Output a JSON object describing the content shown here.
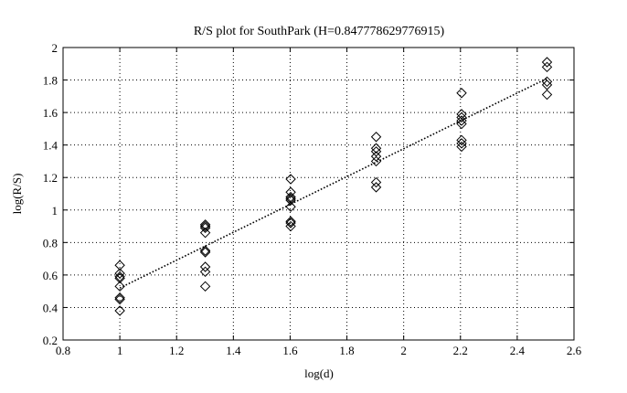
{
  "chart_data": {
    "type": "scatter",
    "title": "R/S plot for SouthPark (H=0.847778629776915)",
    "xlabel": "log(d)",
    "ylabel": "log(R/S)",
    "xlim": [
      0.8,
      2.6
    ],
    "ylim": [
      0.2,
      2.0
    ],
    "xticks": [
      0.8,
      1.0,
      1.2,
      1.4,
      1.6,
      1.8,
      2.0,
      2.2,
      2.4,
      2.6
    ],
    "xtick_labels": [
      "0.8",
      "1",
      "1.2",
      "1.4",
      "1.6",
      "1.8",
      "2",
      "2.2",
      "2.4",
      "2.6"
    ],
    "yticks": [
      0.2,
      0.4,
      0.6,
      0.8,
      1.0,
      1.2,
      1.4,
      1.6,
      1.8,
      2.0
    ],
    "ytick_labels": [
      "0.2",
      "0.4",
      "0.6",
      "0.8",
      "1",
      "1.2",
      "1.4",
      "1.6",
      "1.8",
      "2"
    ],
    "grid": true,
    "marker": "diamond",
    "points": [
      {
        "x": 1.0,
        "y": 0.66
      },
      {
        "x": 1.0,
        "y": 0.61
      },
      {
        "x": 1.0,
        "y": 0.59
      },
      {
        "x": 1.0,
        "y": 0.58
      },
      {
        "x": 1.0,
        "y": 0.53
      },
      {
        "x": 1.0,
        "y": 0.46
      },
      {
        "x": 1.0,
        "y": 0.45
      },
      {
        "x": 1.0,
        "y": 0.38
      },
      {
        "x": 1.301,
        "y": 0.91
      },
      {
        "x": 1.301,
        "y": 0.9
      },
      {
        "x": 1.301,
        "y": 0.89
      },
      {
        "x": 1.301,
        "y": 0.86
      },
      {
        "x": 1.301,
        "y": 0.75
      },
      {
        "x": 1.301,
        "y": 0.74
      },
      {
        "x": 1.301,
        "y": 0.65
      },
      {
        "x": 1.301,
        "y": 0.62
      },
      {
        "x": 1.301,
        "y": 0.53
      },
      {
        "x": 1.602,
        "y": 1.19
      },
      {
        "x": 1.602,
        "y": 1.11
      },
      {
        "x": 1.602,
        "y": 1.08
      },
      {
        "x": 1.602,
        "y": 1.07
      },
      {
        "x": 1.602,
        "y": 1.06
      },
      {
        "x": 1.602,
        "y": 1.02
      },
      {
        "x": 1.602,
        "y": 0.93
      },
      {
        "x": 1.602,
        "y": 0.92
      },
      {
        "x": 1.602,
        "y": 0.9
      },
      {
        "x": 1.903,
        "y": 1.45
      },
      {
        "x": 1.903,
        "y": 1.38
      },
      {
        "x": 1.903,
        "y": 1.36
      },
      {
        "x": 1.903,
        "y": 1.33
      },
      {
        "x": 1.903,
        "y": 1.3
      },
      {
        "x": 1.903,
        "y": 1.17
      },
      {
        "x": 1.903,
        "y": 1.14
      },
      {
        "x": 2.204,
        "y": 1.72
      },
      {
        "x": 2.204,
        "y": 1.59
      },
      {
        "x": 2.204,
        "y": 1.57
      },
      {
        "x": 2.204,
        "y": 1.55
      },
      {
        "x": 2.204,
        "y": 1.53
      },
      {
        "x": 2.204,
        "y": 1.43
      },
      {
        "x": 2.204,
        "y": 1.41
      },
      {
        "x": 2.204,
        "y": 1.39
      },
      {
        "x": 2.505,
        "y": 1.91
      },
      {
        "x": 2.505,
        "y": 1.88
      },
      {
        "x": 2.505,
        "y": 1.79
      },
      {
        "x": 2.505,
        "y": 1.77
      },
      {
        "x": 2.505,
        "y": 1.71
      }
    ],
    "fit_line": {
      "style": "dotted",
      "x": [
        1.0,
        2.505
      ],
      "y": [
        0.52,
        1.81
      ]
    }
  }
}
